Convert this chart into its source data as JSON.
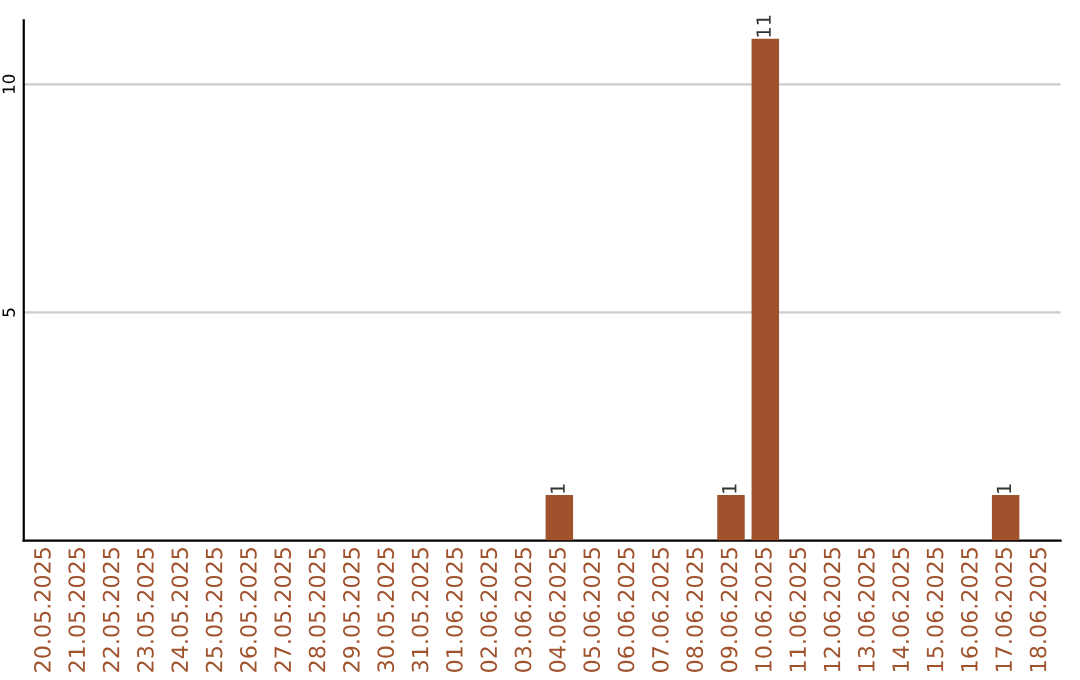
{
  "chart_data": {
    "type": "bar",
    "categories": [
      "20.05.2025",
      "21.05.2025",
      "22.05.2025",
      "23.05.2025",
      "24.05.2025",
      "25.05.2025",
      "26.05.2025",
      "27.05.2025",
      "28.05.2025",
      "29.05.2025",
      "30.05.2025",
      "31.05.2025",
      "01.06.2025",
      "02.06.2025",
      "03.06.2025",
      "04.06.2025",
      "05.06.2025",
      "06.06.2025",
      "07.06.2025",
      "08.06.2025",
      "09.06.2025",
      "10.06.2025",
      "11.06.2025",
      "12.06.2025",
      "13.06.2025",
      "14.06.2025",
      "15.06.2025",
      "16.06.2025",
      "17.06.2025",
      "18.06.2025"
    ],
    "values": [
      0,
      0,
      0,
      0,
      0,
      0,
      0,
      0,
      0,
      0,
      0,
      0,
      0,
      0,
      0,
      1,
      0,
      0,
      0,
      0,
      1,
      11,
      0,
      0,
      0,
      0,
      0,
      0,
      1,
      0
    ],
    "value_labels": [
      null,
      null,
      null,
      null,
      null,
      null,
      null,
      null,
      null,
      null,
      null,
      null,
      null,
      null,
      null,
      "1",
      null,
      null,
      null,
      null,
      "1",
      "11",
      null,
      null,
      null,
      null,
      null,
      null,
      "1",
      null
    ],
    "color": "#a0522d",
    "ylim": [
      0,
      11.4
    ],
    "yticks": [
      5,
      10
    ],
    "grid": "y",
    "legend": false
  }
}
